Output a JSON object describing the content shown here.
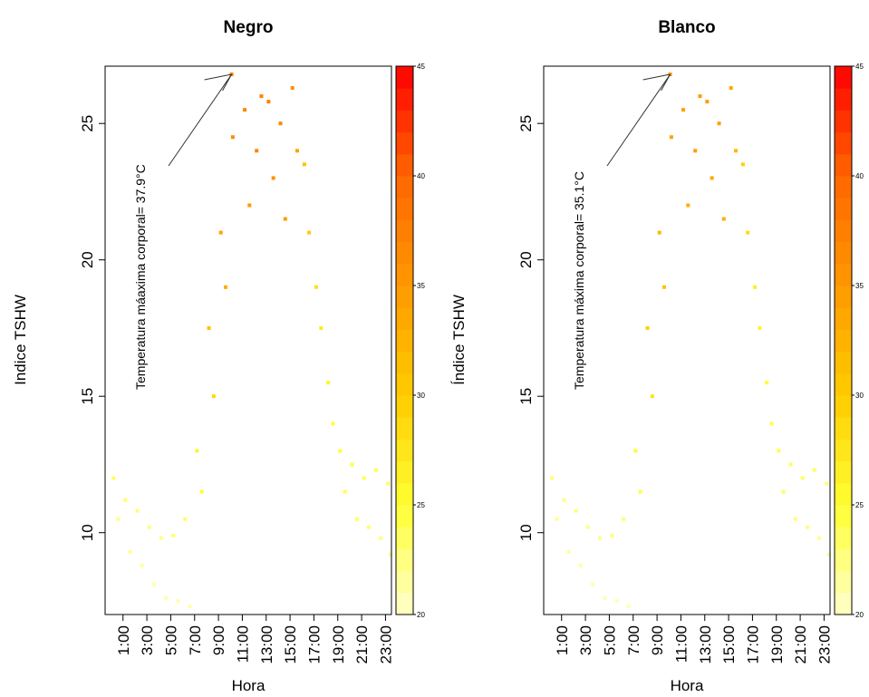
{
  "chart_data": [
    {
      "type": "scatter",
      "title": "Negro",
      "xlabel": "Hora",
      "ylabel": "Indice TSHW",
      "annotation": "Temperatura máaxima corporal= 37.9°C",
      "x": [
        0.2,
        0.6,
        1.2,
        1.6,
        2.2,
        2.6,
        3.2,
        3.6,
        4.2,
        4.6,
        5.2,
        5.6,
        6.2,
        6.6,
        7.2,
        7.6,
        8.2,
        8.6,
        9.2,
        9.6,
        10.2,
        10.1,
        11.2,
        11.6,
        12.2,
        12.6,
        13.2,
        13.6,
        14.2,
        14.6,
        15.2,
        15.6,
        16.2,
        16.6,
        17.2,
        17.6,
        18.2,
        18.6,
        19.2,
        19.6,
        20.2,
        20.6,
        21.2,
        21.6,
        22.2,
        22.6,
        23.2,
        23.4
      ],
      "values": [
        12.0,
        10.5,
        11.2,
        9.3,
        10.8,
        8.8,
        10.2,
        8.1,
        9.8,
        7.6,
        9.9,
        7.5,
        10.5,
        7.3,
        13.0,
        11.5,
        17.5,
        15.0,
        21.0,
        19.0,
        24.5,
        26.8,
        25.5,
        22.0,
        24.0,
        26.0,
        25.8,
        23.0,
        25.0,
        21.5,
        26.3,
        24.0,
        23.5,
        21.0,
        19.0,
        17.5,
        15.5,
        14.0,
        13.0,
        11.5,
        12.5,
        10.5,
        12.0,
        10.2,
        12.3,
        9.8,
        11.8,
        9.2
      ],
      "temperature": [
        23.5,
        22.5,
        23,
        22,
        23,
        21.5,
        22.5,
        21,
        22.5,
        21,
        23,
        21,
        23.5,
        21,
        26,
        25,
        31,
        29,
        34,
        33,
        36.5,
        37.9,
        37,
        35,
        37,
        37.5,
        37.5,
        36,
        37,
        35,
        36,
        34,
        31,
        30,
        28,
        27,
        26,
        25,
        25,
        24,
        24.5,
        23.5,
        24,
        23,
        24,
        22.5,
        23.5,
        22
      ],
      "xlim": [
        -0.5,
        23.5
      ],
      "xticks": [
        {
          "value": 1,
          "label": "1:00"
        },
        {
          "value": 3,
          "label": "3:00"
        },
        {
          "value": 5,
          "label": "5:00"
        },
        {
          "value": 7,
          "label": "7:00"
        },
        {
          "value": 9,
          "label": "9:00"
        },
        {
          "value": 11,
          "label": "11:00"
        },
        {
          "value": 13,
          "label": "13:00"
        },
        {
          "value": 15,
          "label": "15:00"
        },
        {
          "value": 17,
          "label": "17:00"
        },
        {
          "value": 19,
          "label": "19:00"
        },
        {
          "value": 21,
          "label": "21:00"
        },
        {
          "value": 23,
          "label": "23:00"
        }
      ],
      "ylim": [
        7,
        27.1
      ],
      "yticks": [
        10,
        15,
        20,
        25
      ],
      "clim": [
        20,
        45
      ],
      "cticks": [
        20,
        25,
        30,
        35,
        40,
        45
      ],
      "colormap": [
        "#ffffcc",
        "#ffff33",
        "#ffcc00",
        "#ff9900",
        "#ff6600",
        "#ff0000"
      ]
    },
    {
      "type": "scatter",
      "title": "Blanco",
      "xlabel": "Hora",
      "ylabel": "Índice TSHW",
      "annotation": "Temperatura máxima corporal= 35.1°C",
      "x": [
        0.2,
        0.6,
        1.2,
        1.6,
        2.2,
        2.6,
        3.2,
        3.6,
        4.2,
        4.6,
        5.2,
        5.6,
        6.2,
        6.6,
        7.2,
        7.6,
        8.2,
        8.6,
        9.2,
        9.6,
        10.2,
        10.1,
        11.2,
        11.6,
        12.2,
        12.6,
        13.2,
        13.6,
        14.2,
        14.6,
        15.2,
        15.6,
        16.2,
        16.6,
        17.2,
        17.6,
        18.2,
        18.6,
        19.2,
        19.6,
        20.2,
        20.6,
        21.2,
        21.6,
        22.2,
        22.6,
        23.2,
        23.4
      ],
      "values": [
        12.0,
        10.5,
        11.2,
        9.3,
        10.8,
        8.8,
        10.2,
        8.1,
        9.8,
        7.6,
        9.9,
        7.5,
        10.5,
        7.3,
        13.0,
        11.5,
        17.5,
        15.0,
        21.0,
        19.0,
        24.5,
        26.8,
        25.5,
        22.0,
        24.0,
        26.0,
        25.8,
        23.0,
        25.0,
        21.5,
        26.3,
        24.0,
        23.5,
        21.0,
        19.0,
        17.5,
        15.5,
        14.0,
        13.0,
        11.5,
        12.5,
        10.5,
        12.0,
        10.2,
        12.3,
        9.8,
        11.8,
        9.2
      ],
      "temperature": [
        23,
        22.1,
        22.6,
        21.7,
        22.6,
        21.3,
        22.1,
        20.9,
        22.1,
        20.9,
        22.6,
        20.9,
        23,
        20.9,
        25.1,
        24.3,
        29.4,
        27.7,
        31.9,
        31,
        34,
        35.1,
        34.5,
        32.8,
        34.5,
        34.8,
        34.9,
        33.6,
        34.5,
        32.8,
        33.6,
        31.9,
        29.4,
        28.5,
        26.8,
        26,
        25.1,
        24.3,
        24.3,
        23.4,
        23.8,
        23,
        23.4,
        22.6,
        23.4,
        22.1,
        23,
        21.7
      ],
      "xlim": [
        -0.5,
        23.5
      ],
      "xticks": [
        {
          "value": 1,
          "label": "1:00"
        },
        {
          "value": 3,
          "label": "3:00"
        },
        {
          "value": 5,
          "label": "5:00"
        },
        {
          "value": 7,
          "label": "7:00"
        },
        {
          "value": 9,
          "label": "9:00"
        },
        {
          "value": 11,
          "label": "11:00"
        },
        {
          "value": 13,
          "label": "13:00"
        },
        {
          "value": 15,
          "label": "15:00"
        },
        {
          "value": 17,
          "label": "17:00"
        },
        {
          "value": 19,
          "label": "19:00"
        },
        {
          "value": 21,
          "label": "21:00"
        },
        {
          "value": 23,
          "label": "23:00"
        }
      ],
      "ylim": [
        7,
        27.1
      ],
      "yticks": [
        10,
        15,
        20,
        25
      ],
      "clim": [
        20,
        45
      ],
      "cticks": [
        20,
        25,
        30,
        35,
        40,
        45
      ],
      "colormap": [
        "#ffffcc",
        "#ffff33",
        "#ffcc00",
        "#ff9900",
        "#ff6600",
        "#ff0000"
      ]
    }
  ]
}
